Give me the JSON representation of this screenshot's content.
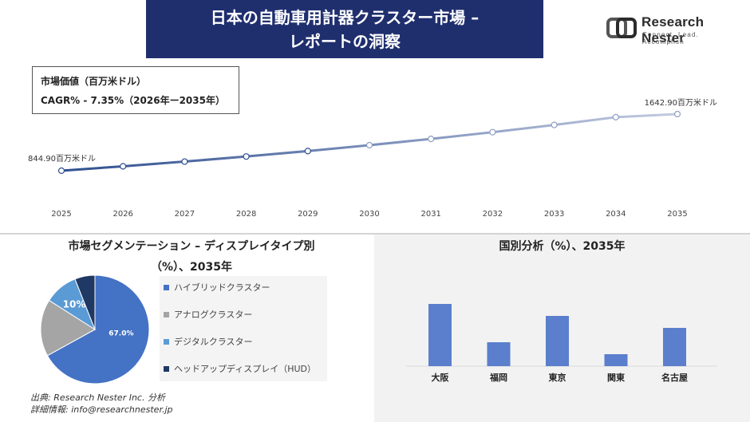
{
  "header": {
    "title_line1": "日本の自動車用計器クラスター市場 –",
    "title_line2": "レポートの洞察"
  },
  "logo": {
    "name": "Research Nester",
    "tagline": "Connect. Lead. Accomplish"
  },
  "info": {
    "market_value_label": "市場価値（百万米ドル）",
    "cagr_label": "CAGR% - 7.35%（2026年ー2035年）"
  },
  "colors": {
    "title_bg": "#1f2f6e",
    "line_start": "#2f4f8f",
    "line_end": "#c3cbe0",
    "bar": "#5b7fcc",
    "pie_hybrid": "#4472c4",
    "pie_analog": "#a5a5a5",
    "pie_digital": "#5b9bd5",
    "pie_hud": "#1f3864"
  },
  "segment": {
    "title_line1": "市場セグメンテーション – ディスプレイタイプ別",
    "title_line2": "（%）、2035年"
  },
  "country": {
    "title": "国別分析（%）、2035年"
  },
  "source": {
    "line1": "出典: Research Nester Inc. 分析",
    "line2": "詳細情報: info@researchnester.jp"
  },
  "chart_data": [
    {
      "type": "line",
      "x": [
        "2025",
        "2026",
        "2027",
        "2028",
        "2029",
        "2030",
        "2031",
        "2032",
        "2033",
        "2034",
        "2035"
      ],
      "series": [
        {
          "values": [
            844.9,
            907.0,
            973.6,
            1045.2,
            1122.0,
            1204.5,
            1293.0,
            1388.0,
            1490.0,
            1599.5,
            1642.9
          ]
        }
      ],
      "annotations": [
        {
          "x": "2025",
          "label": "844.90百万米ドル"
        },
        {
          "x": "2035",
          "label": "1642.90百万米ドル"
        }
      ],
      "grid": false
    },
    {
      "type": "pie",
      "categories": [
        "ハイブリッドクラスター",
        "アナログクラスター",
        "デジタルクラスター",
        "ヘッドアップディスプレイ（HUD）"
      ],
      "values": [
        67.0,
        17.0,
        10.0,
        6.0
      ],
      "data_labels": [
        "67.0%",
        "",
        "10%",
        ""
      ],
      "legend": "right"
    },
    {
      "type": "bar",
      "categories": [
        "大阪",
        "福岡",
        "東京",
        "関東",
        "名古屋"
      ],
      "values": [
        26,
        10,
        21,
        5,
        16
      ],
      "ylim": [
        0,
        30
      ]
    }
  ]
}
